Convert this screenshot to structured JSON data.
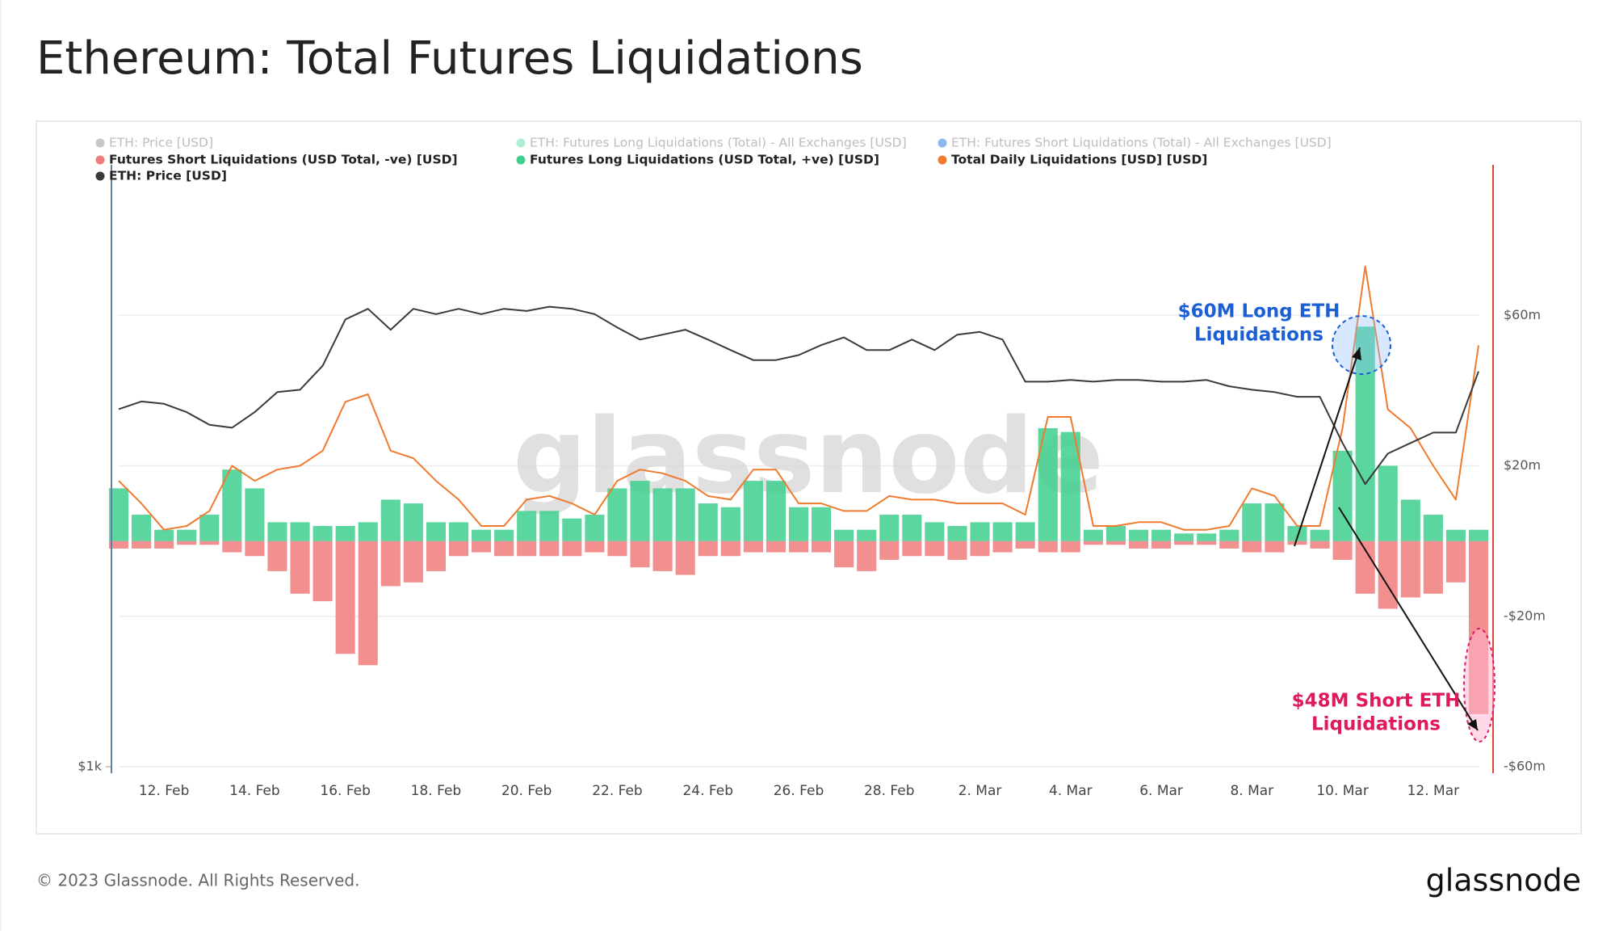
{
  "chart_data": {
    "type": "bar",
    "title": "Ethereum: Total Futures Liquidations",
    "footer": "© 2023 Glassnode. All Rights Reserved.",
    "brand": "glassnode",
    "watermark": "glassnode",
    "categories": [
      null,
      null,
      "12. Feb",
      null,
      null,
      null,
      "14. Feb",
      null,
      null,
      null,
      "16. Feb",
      null,
      null,
      null,
      "18. Feb",
      null,
      null,
      null,
      "20. Feb",
      null,
      null,
      null,
      "22. Feb",
      null,
      null,
      null,
      "24. Feb",
      null,
      null,
      null,
      "26. Feb",
      null,
      null,
      null,
      "28. Feb",
      null,
      null,
      null,
      "2. Mar",
      null,
      null,
      null,
      "4. Mar",
      null,
      null,
      null,
      "6. Mar",
      null,
      null,
      null,
      "8. Mar",
      null,
      null,
      null,
      "10. Mar",
      null,
      null,
      null,
      "12. Mar",
      null,
      null
    ],
    "ylim": [
      -60,
      100
    ],
    "yticks": [
      {
        "value": -60,
        "label": "-$60m"
      },
      {
        "value": -20,
        "label": "-$20m"
      },
      {
        "value": 20,
        "label": "$20m"
      },
      {
        "value": 60,
        "label": "$60m"
      }
    ],
    "y2lim": [
      1000,
      1970
    ],
    "y2log": true,
    "y2ticks": [
      {
        "value": 1000,
        "label": "$1k"
      }
    ],
    "grid": true,
    "inactive_legend": [
      {
        "name": "ETH: Price [USD]",
        "color": "#9a9a9a"
      },
      {
        "name": "ETH: Futures Long Liquidations (Total) - All Exchanges [USD]",
        "color": "#6ee0ae"
      },
      {
        "name": "ETH: Futures Short Liquidations (Total) - All Exchanges [USD]",
        "color": "#2f7fe0"
      }
    ],
    "series": [
      {
        "name": "Futures Short Liquidations (USD Total, -ve) [USD]",
        "type": "bar",
        "color": "#f07c7c",
        "values": [
          -2,
          -2,
          -2,
          -1,
          -1,
          -3,
          -4,
          -8,
          -14,
          -16,
          -30,
          -33,
          -12,
          -11,
          -8,
          -4,
          -3,
          -4,
          -4,
          -4,
          -4,
          -3,
          -4,
          -7,
          -8,
          -9,
          -4,
          -4,
          -3,
          -3,
          -3,
          -3,
          -7,
          -8,
          -5,
          -4,
          -4,
          -5,
          -4,
          -3,
          -2,
          -3,
          -3,
          -1,
          -1,
          -2,
          -2,
          -1,
          -1,
          -2,
          -3,
          -3,
          -1,
          -2,
          -5,
          -14,
          -18,
          -15,
          -14,
          -11,
          -46
        ]
      },
      {
        "name": "Futures Long Liquidations (USD Total, +ve) [USD]",
        "type": "bar",
        "color": "#3fcf8e",
        "values": [
          14,
          7,
          3,
          3,
          7,
          19,
          14,
          5,
          5,
          4,
          4,
          5,
          11,
          10,
          5,
          5,
          3,
          3,
          8,
          8,
          6,
          7,
          14,
          16,
          14,
          14,
          10,
          9,
          16,
          16,
          9,
          9,
          3,
          3,
          7,
          7,
          5,
          4,
          5,
          5,
          5,
          30,
          29,
          3,
          4,
          3,
          3,
          2,
          2,
          3,
          10,
          10,
          4,
          3,
          24,
          57,
          20,
          11,
          7,
          3,
          3
        ]
      },
      {
        "name": "Total Daily Liquidations [USD] [USD]",
        "type": "line",
        "color": "#f07a2e",
        "values": [
          16,
          10,
          3,
          4,
          8,
          20,
          16,
          19,
          20,
          24,
          37,
          39,
          24,
          22,
          16,
          11,
          4,
          4,
          11,
          12,
          10,
          7,
          16,
          19,
          18,
          16,
          12,
          11,
          19,
          19,
          10,
          10,
          8,
          8,
          12,
          11,
          11,
          10,
          10,
          10,
          7,
          33,
          33,
          4,
          4,
          5,
          5,
          3,
          3,
          4,
          14,
          12,
          4,
          4,
          30,
          73,
          35,
          30,
          20,
          11,
          52
        ]
      },
      {
        "name": "ETH: Price [USD]",
        "type": "line",
        "color": "#3a3a3a",
        "axis": "y2",
        "values": [
          1496,
          1509,
          1505,
          1491,
          1470,
          1465,
          1491,
          1525,
          1529,
          1571,
          1655,
          1675,
          1636,
          1675,
          1665,
          1675,
          1665,
          1675,
          1671,
          1679,
          1675,
          1665,
          1640,
          1618,
          1627,
          1636,
          1618,
          1599,
          1581,
          1581,
          1590,
          1608,
          1622,
          1599,
          1599,
          1618,
          1599,
          1627,
          1632,
          1618,
          1543,
          1543,
          1546,
          1543,
          1546,
          1546,
          1543,
          1543,
          1546,
          1535,
          1529,
          1525,
          1517,
          1517,
          1440,
          1375,
          1423,
          1440,
          1457,
          1457,
          1561
        ]
      }
    ],
    "annotations": [
      {
        "lines": [
          "$60M Long ETH",
          "Liquidations"
        ],
        "color": "#1a5fd6"
      },
      {
        "lines": [
          "$48M Short ETH",
          "Liquidations"
        ],
        "color": "#e0185e"
      }
    ]
  }
}
